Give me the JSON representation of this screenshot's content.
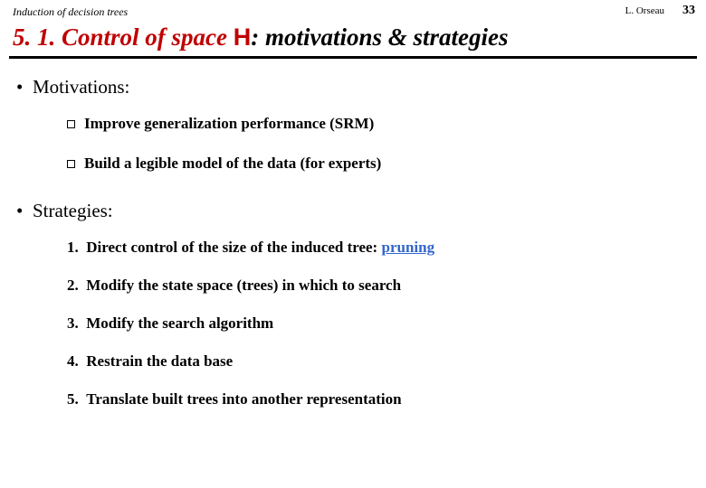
{
  "header": {
    "topic": "Induction of decision trees",
    "author": "L. Orseau",
    "page_number": "33"
  },
  "title": {
    "number": "5. 1. ",
    "main": "Control of space ",
    "H": "H",
    "rest": ": motivations & strategies"
  },
  "sections": {
    "motivations": {
      "heading": "Motivations:",
      "items": [
        "Improve generalization performance  (SRM)",
        "Build a legible model of the data (for experts)"
      ]
    },
    "strategies": {
      "heading": "Strategies:",
      "items": [
        {
          "num": "1.",
          "prefix": "Direct control of the size of the induced tree: ",
          "highlight": "pruning",
          "suffix": ""
        },
        {
          "num": "2.",
          "prefix": "Modify the state space (trees) in which to search",
          "highlight": "",
          "suffix": ""
        },
        {
          "num": "3.",
          "prefix": "Modify the search algorithm",
          "highlight": "",
          "suffix": ""
        },
        {
          "num": "4.",
          "prefix": "Restrain the data base",
          "highlight": "",
          "suffix": ""
        },
        {
          "num": "5.",
          "prefix": "Translate built trees into another representation",
          "highlight": "",
          "suffix": ""
        }
      ]
    }
  },
  "style": {
    "accent_color": "#c00000",
    "link_color": "#3366cc",
    "text_color": "#000000",
    "background": "#ffffff",
    "title_fontsize": 27,
    "heading_fontsize": 21,
    "body_fontsize": 17
  }
}
